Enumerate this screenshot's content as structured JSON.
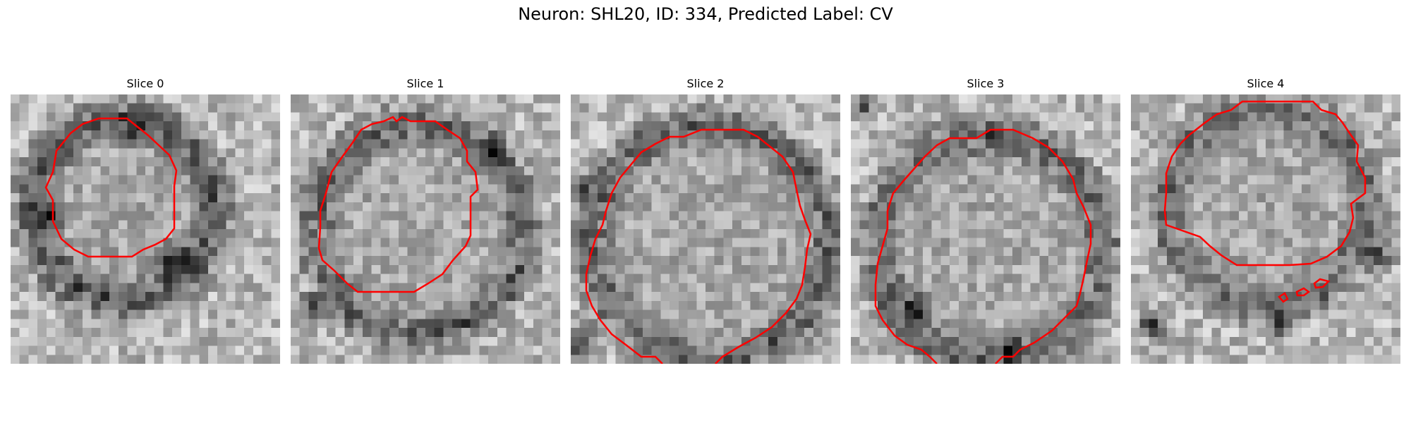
{
  "figure": {
    "title": "Neuron: SHL20, ID: 334, Predicted Label: CV"
  },
  "panels": [
    {
      "title": "Slice 0"
    },
    {
      "title": "Slice 1"
    },
    {
      "title": "Slice 2"
    },
    {
      "title": "Slice 3"
    },
    {
      "title": "Slice 4"
    }
  ],
  "colors": {
    "contour": "#ff0000",
    "background": "#ffffff"
  }
}
